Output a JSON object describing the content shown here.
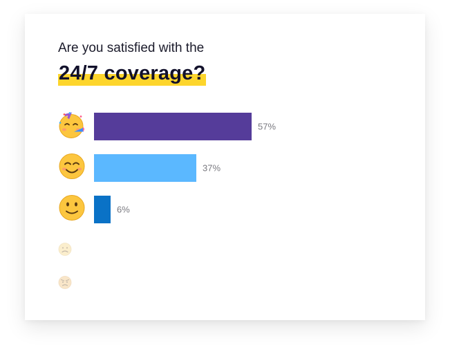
{
  "question": {
    "line1": "Are you satisfied with the",
    "line2": "24/7 coverage?"
  },
  "colors": {
    "highlight": "#fdd52c",
    "very_satisfied": "#553c9a",
    "satisfied": "#5bb8ff",
    "neutral": "#0a72c6"
  },
  "chart_data": {
    "type": "bar",
    "orientation": "horizontal",
    "title": "Are you satisfied with the 24/7 coverage?",
    "categories": [
      "partying-face-icon",
      "smiling-face-icon",
      "slightly-smiling-face-icon",
      "frowning-face-icon",
      "angry-face-icon"
    ],
    "values": [
      57,
      37,
      6,
      0,
      0
    ],
    "labels": [
      "57%",
      "37%",
      "6%",
      "",
      ""
    ],
    "xlim": [
      0,
      100
    ]
  }
}
